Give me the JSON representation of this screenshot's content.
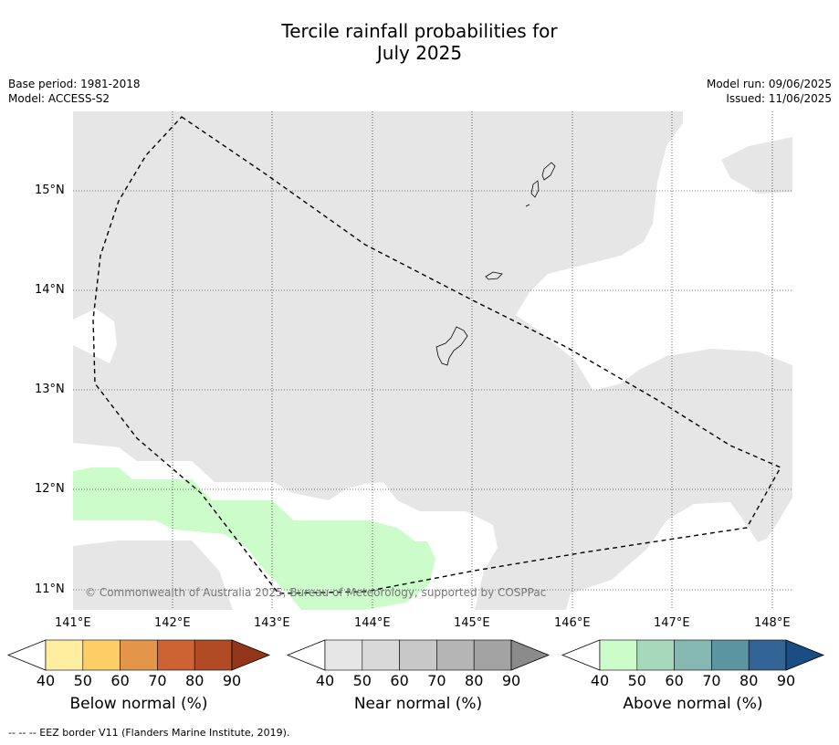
{
  "title_line1": "Tercile rainfall probabilities for",
  "title_line2": "July 2025",
  "meta_left": [
    "Base period: 1981-2018",
    "Model: ACCESS-S2"
  ],
  "meta_right": [
    "Model run: 09/06/2025",
    "Issued: 11/06/2025"
  ],
  "copyright": "© Commonwealth of Australia 2025, Bureau of Meteorology, supported by COSPPac",
  "lat_ticks": [
    "15°N",
    "14°N",
    "13°N",
    "12°N",
    "11°N"
  ],
  "lon_ticks": [
    "141°E",
    "142°E",
    "143°E",
    "144°E",
    "145°E",
    "146°E",
    "147°E",
    "148°E"
  ],
  "colorbars": [
    {
      "name": "below",
      "label": "Below normal (%)",
      "colors": [
        "#ffeea0",
        "#fdce66",
        "#e3954a",
        "#cd6233",
        "#b04b26"
      ],
      "extend_color": "#933519",
      "ticks": [
        "40",
        "50",
        "60",
        "70",
        "80",
        "90"
      ]
    },
    {
      "name": "near",
      "label": "Near normal (%)",
      "colors": [
        "#e6e6e6",
        "#d9d9d9",
        "#c8c8c8",
        "#b5b5b5",
        "#a3a3a3"
      ],
      "extend_color": "#8b8b8b",
      "ticks": [
        "40",
        "50",
        "60",
        "70",
        "80",
        "90"
      ]
    },
    {
      "name": "above",
      "label": "Above normal (%)",
      "colors": [
        "#cbfcc9",
        "#a6d8bc",
        "#84b8b0",
        "#5a95a1",
        "#326596"
      ],
      "extend_color": "#1a4d84",
      "ticks": [
        "40",
        "50",
        "60",
        "70",
        "80",
        "90"
      ]
    }
  ],
  "footnote": "--  --  -- EEZ border V11 (Flanders Marine Institute, 2019)."
}
